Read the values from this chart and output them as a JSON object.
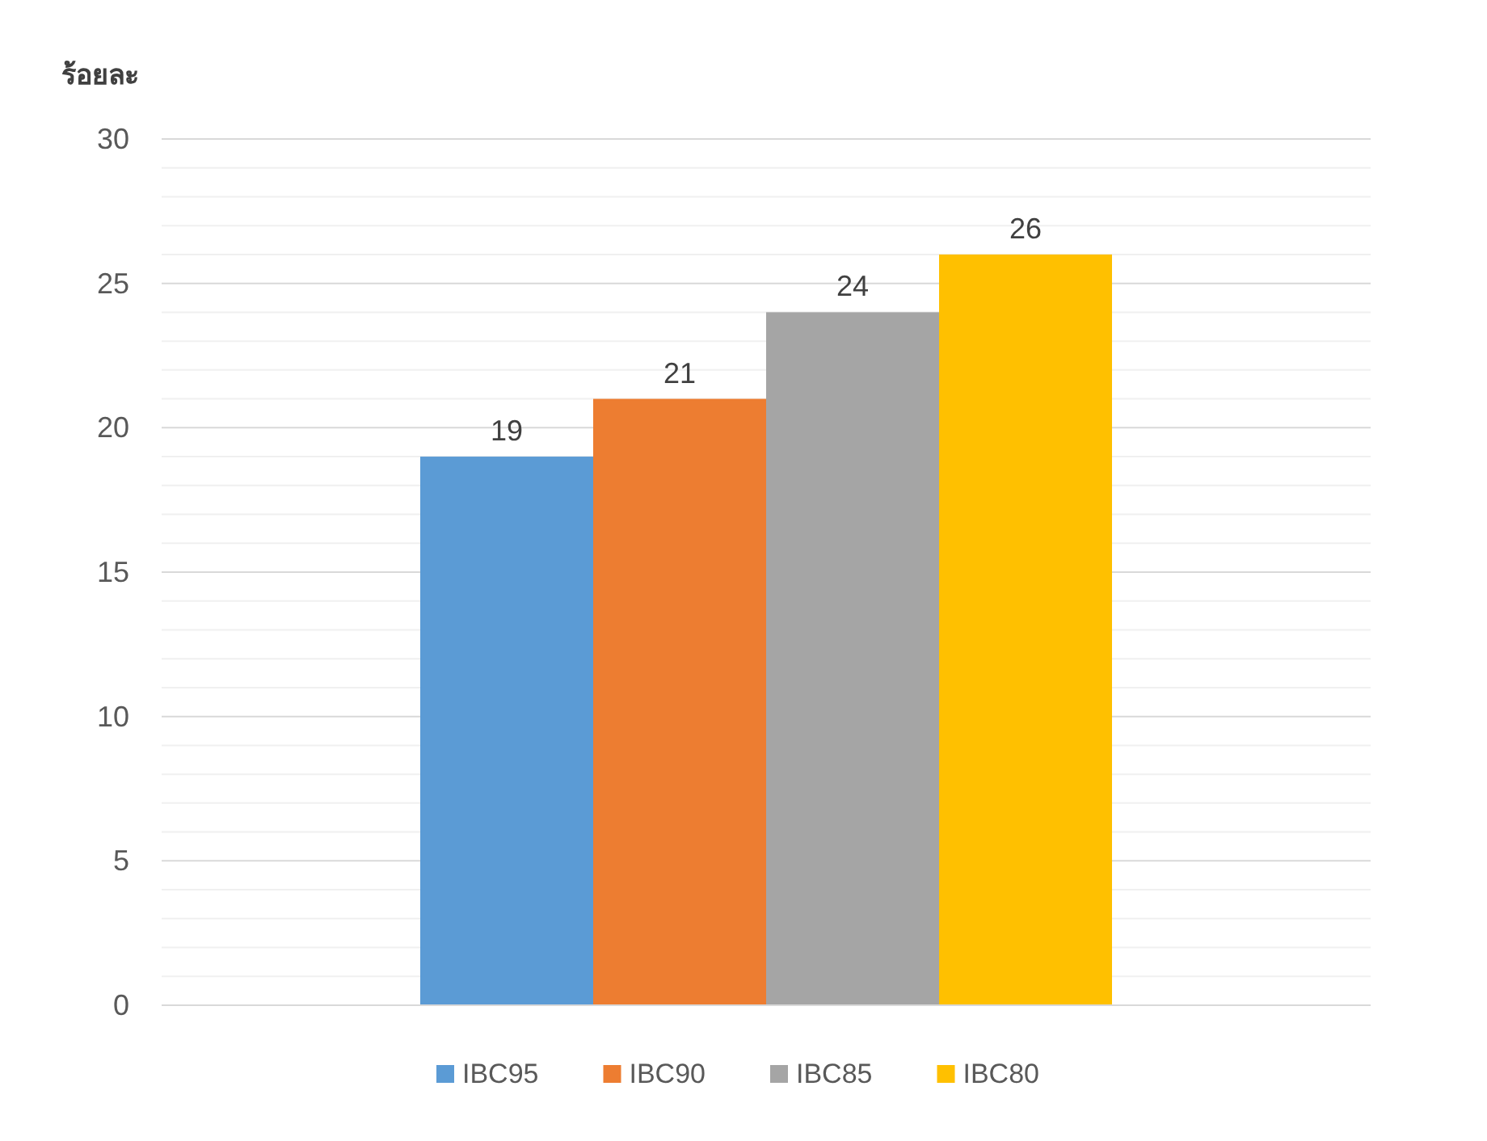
{
  "chart_data": {
    "type": "bar",
    "ylabel": "ร้อยละ",
    "categories": [
      null
    ],
    "series": [
      {
        "name": "IBC95",
        "color": "#5b9bd5",
        "values": [
          19
        ]
      },
      {
        "name": "IBC90",
        "color": "#ed7d31",
        "values": [
          21
        ]
      },
      {
        "name": "IBC85",
        "color": "#a5a5a5",
        "values": [
          24
        ]
      },
      {
        "name": "IBC80",
        "color": "#ffc000",
        "values": [
          26
        ]
      }
    ],
    "ylim": [
      0,
      30
    ],
    "yticks": [
      0,
      {
        "value": 1,
        "label": null
      },
      {
        "value": 2,
        "label": null
      },
      {
        "value": 3,
        "label": null
      },
      {
        "value": 4,
        "label": null
      },
      5,
      {
        "value": 6,
        "label": null
      },
      {
        "value": 7,
        "label": null
      },
      {
        "value": 8,
        "label": null
      },
      {
        "value": 9,
        "label": null
      },
      10,
      {
        "value": 11,
        "label": null
      },
      {
        "value": 12,
        "label": null
      },
      {
        "value": 13,
        "label": null
      },
      {
        "value": 14,
        "label": null
      },
      15,
      {
        "value": 16,
        "label": null
      },
      {
        "value": 17,
        "label": null
      },
      {
        "value": 18,
        "label": null
      },
      {
        "value": 19,
        "label": null
      },
      20,
      {
        "value": 21,
        "label": null
      },
      {
        "value": 22,
        "label": null
      },
      {
        "value": 23,
        "label": null
      },
      {
        "value": 24,
        "label": null
      },
      25,
      {
        "value": 26,
        "label": null
      },
      {
        "value": 27,
        "label": null
      },
      {
        "value": 28,
        "label": null
      },
      {
        "value": 29,
        "label": null
      },
      30
    ],
    "grid": "y",
    "legend": "bottom",
    "data_labels": true
  }
}
